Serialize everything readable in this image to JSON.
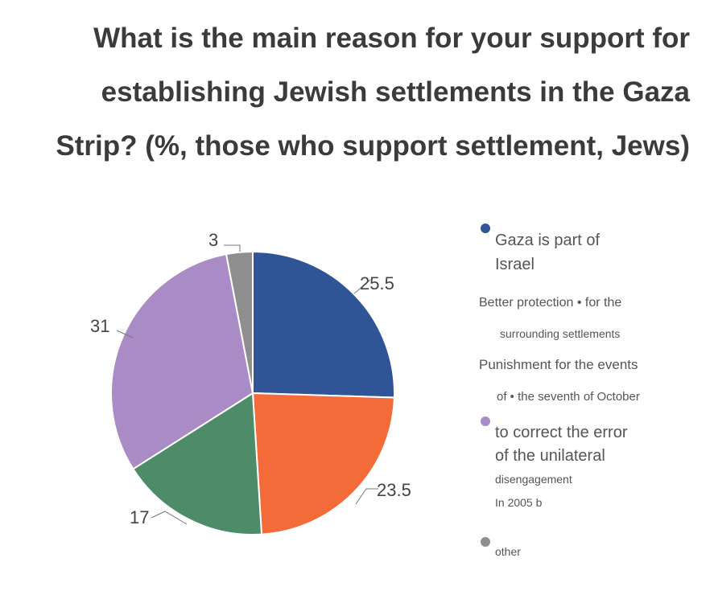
{
  "title": {
    "line1": "What is the main reason for your support for",
    "line2": "establishing Jewish settlements in the Gaza",
    "line3": "Strip? (%, those who support settlement, Jews)"
  },
  "chart_data": {
    "type": "pie",
    "title": "What is the main reason for your support for establishing Jewish settlements in the Gaza Strip? (%, those who support settlement, Jews)",
    "slices": [
      {
        "label": "Gaza is part of Israel",
        "value": 25.5,
        "display": "25.5",
        "color": "#2f5597"
      },
      {
        "label": "Better protection for the surrounding settlements",
        "value": 23.5,
        "display": "23.5",
        "color": "#f26b38"
      },
      {
        "label": "Punishment for the events of the seventh of October",
        "value": 17,
        "display": "17",
        "color": "#4e8c69"
      },
      {
        "label": "to correct the error of the unilateral disengagement In 2005 b",
        "value": 31,
        "display": "31",
        "color": "#a98cc5"
      },
      {
        "label": "other",
        "value": 3,
        "display": "3",
        "color": "#8e8e8e"
      }
    ]
  },
  "legend": {
    "gaza": {
      "line1": "Gaza is part of",
      "line2": "Israel",
      "color": "#2f5597"
    },
    "protection": {
      "line1": "Better protection • for the",
      "line2": "surrounding settlements"
    },
    "punishment": {
      "line1": "Punishment for the events",
      "line2": "of • the seventh of October"
    },
    "correct": {
      "line1": "to correct the error",
      "line2": "of the unilateral",
      "line3": "disengagement",
      "line4": "In 2005 b",
      "color": "#a98cc5"
    },
    "other": {
      "line1": "other",
      "color": "#8e8e8e"
    }
  }
}
